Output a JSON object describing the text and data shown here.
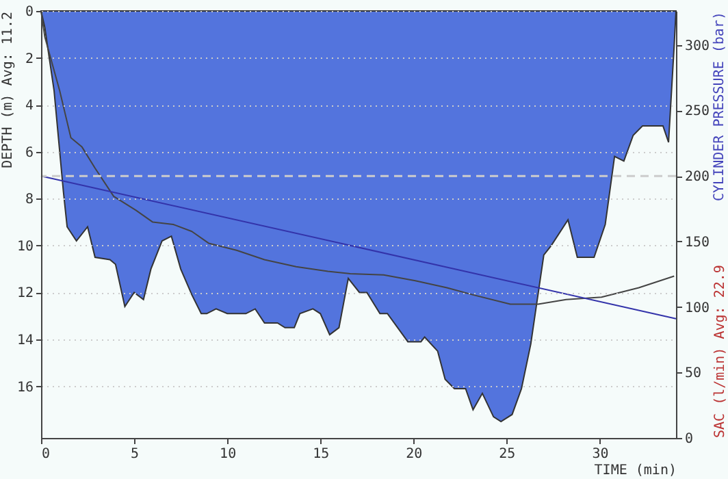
{
  "chart_data": {
    "type": "area",
    "xlabel": "TIME (min)",
    "ylabel": "DEPTH (m) Avg: 11.2",
    "y2label": "CYLINDER PRESSURE (bar)",
    "y3label": "SAC (l/min) Avg: 22.9",
    "xlim": [
      0,
      34.1
    ],
    "xticks": [
      0,
      5,
      10,
      15,
      20,
      25,
      30
    ],
    "ylim": [
      18.2,
      0
    ],
    "yticks": [
      0,
      2,
      4,
      6,
      8,
      10,
      12,
      14,
      16
    ],
    "y2lim": [
      0,
      326
    ],
    "y2ticks": [
      0,
      50,
      100,
      150,
      200,
      250,
      300
    ],
    "grid": "y",
    "ref_lines": [
      {
        "axis": "y2",
        "value": 200,
        "color": "#cccccc",
        "line_style": "dashed"
      }
    ],
    "series": [
      {
        "color": "#5374dd",
        "x": [
          0,
          0.2,
          0.7,
          1.2,
          1.4,
          1.9,
          2.5,
          2.9,
          3.7,
          4.0,
          4.5,
          5.0,
          5.5,
          5.9,
          6.5,
          7.0,
          7.5,
          8.1,
          8.6,
          8.9,
          9.4,
          10.0,
          11.0,
          11.5,
          12.0,
          12.7,
          13.1,
          13.6,
          13.9,
          14.6,
          15.0,
          15.5,
          16.0,
          16.5,
          17.1,
          17.5,
          18.2,
          18.6,
          19.7,
          20.4,
          20.6,
          21.3,
          21.7,
          22.2,
          22.8,
          23.2,
          23.7,
          24.3,
          24.7,
          25.3,
          25.8,
          26.3,
          27.0,
          27.4,
          28.3,
          28.8,
          29.7,
          30.3,
          30.8,
          31.3,
          31.8,
          32.3,
          33.4,
          33.7,
          34.0,
          34.1
        ],
        "values": [
          0,
          0.7,
          3.4,
          7.7,
          9.2,
          9.8,
          9.2,
          10.5,
          10.6,
          10.8,
          12.6,
          12.0,
          12.3,
          11.0,
          9.8,
          9.6,
          11.0,
          12.1,
          12.9,
          12.9,
          12.7,
          12.9,
          12.9,
          12.7,
          13.3,
          13.3,
          13.5,
          13.5,
          12.9,
          12.7,
          12.9,
          13.8,
          13.5,
          11.4,
          12.0,
          12.0,
          12.9,
          12.9,
          14.1,
          14.1,
          13.9,
          14.5,
          15.7,
          16.1,
          16.1,
          17.0,
          16.3,
          17.3,
          17.5,
          17.2,
          16.1,
          14.2,
          10.4,
          10.0,
          8.9,
          10.5,
          10.5,
          9.1,
          6.2,
          6.4,
          5.3,
          4.9,
          4.9,
          5.6,
          1.5,
          0
        ]
      },
      {
        "type": "line",
        "color": "#444444",
        "x": [
          0,
          0.2,
          1.0,
          1.6,
          2.2,
          2.9,
          3.9,
          5.1,
          6.0,
          7.1,
          8.1,
          9.0,
          10.5,
          12.0,
          13.7,
          15.4,
          16.6,
          18.4,
          20.1,
          21.8,
          23.2,
          25.2,
          26.7,
          28.2,
          30.1,
          32.1,
          34.0
        ],
        "values": [
          0,
          1.1,
          3.4,
          5.4,
          5.8,
          6.7,
          7.9,
          8.5,
          9.0,
          9.1,
          9.4,
          9.9,
          10.2,
          10.6,
          10.9,
          11.1,
          11.2,
          11.25,
          11.5,
          11.8,
          12.1,
          12.5,
          12.5,
          12.3,
          12.2,
          11.8,
          11.3
        ]
      },
      {
        "type": "line",
        "axis": "y2",
        "color": "#3333aa",
        "x": [
          0,
          34.1
        ],
        "values": [
          200,
          91
        ]
      }
    ]
  }
}
